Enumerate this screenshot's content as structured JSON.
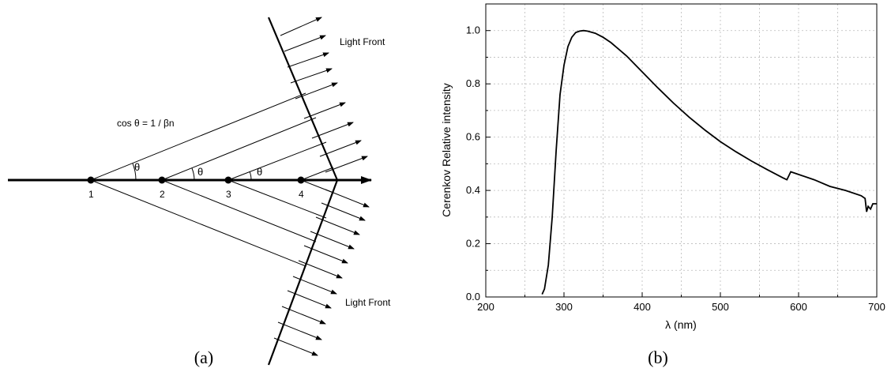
{
  "panel_a": {
    "caption": "(a)",
    "formula": "cos θ = 1 / βn",
    "light_front_upper": "Light Front",
    "light_front_lower": "Light Front",
    "angle_label": "θ",
    "points": [
      "1",
      "2",
      "3",
      "4"
    ]
  },
  "panel_b": {
    "caption": "(b)"
  },
  "chart_data": {
    "type": "line",
    "title": "",
    "xlabel": "λ (nm)",
    "ylabel": "Cerenkov Relative intensity",
    "xlim": [
      200,
      700
    ],
    "ylim": [
      0,
      1.1
    ],
    "xticks": [
      "200",
      "300",
      "400",
      "500",
      "600",
      "700"
    ],
    "yticks": [
      "0.0",
      "0.2",
      "0.4",
      "0.6",
      "0.8",
      "1.0"
    ],
    "grid": true,
    "series": [
      {
        "x": [
          272,
          275,
          280,
          285,
          290,
          295,
          300,
          305,
          310,
          315,
          320,
          325,
          330,
          340,
          350,
          360,
          370,
          380,
          390,
          400,
          420,
          440,
          460,
          480,
          500,
          520,
          540,
          560,
          580,
          585,
          590,
          600,
          620,
          640,
          660,
          680,
          685,
          687,
          689,
          692,
          695,
          700
        ],
        "y": [
          0.01,
          0.03,
          0.12,
          0.3,
          0.55,
          0.76,
          0.87,
          0.94,
          0.975,
          0.993,
          0.998,
          1.0,
          0.998,
          0.99,
          0.975,
          0.955,
          0.93,
          0.905,
          0.875,
          0.845,
          0.785,
          0.728,
          0.675,
          0.627,
          0.583,
          0.545,
          0.51,
          0.478,
          0.447,
          0.44,
          0.47,
          0.46,
          0.44,
          0.415,
          0.4,
          0.38,
          0.37,
          0.32,
          0.34,
          0.33,
          0.35,
          0.35
        ]
      }
    ]
  }
}
